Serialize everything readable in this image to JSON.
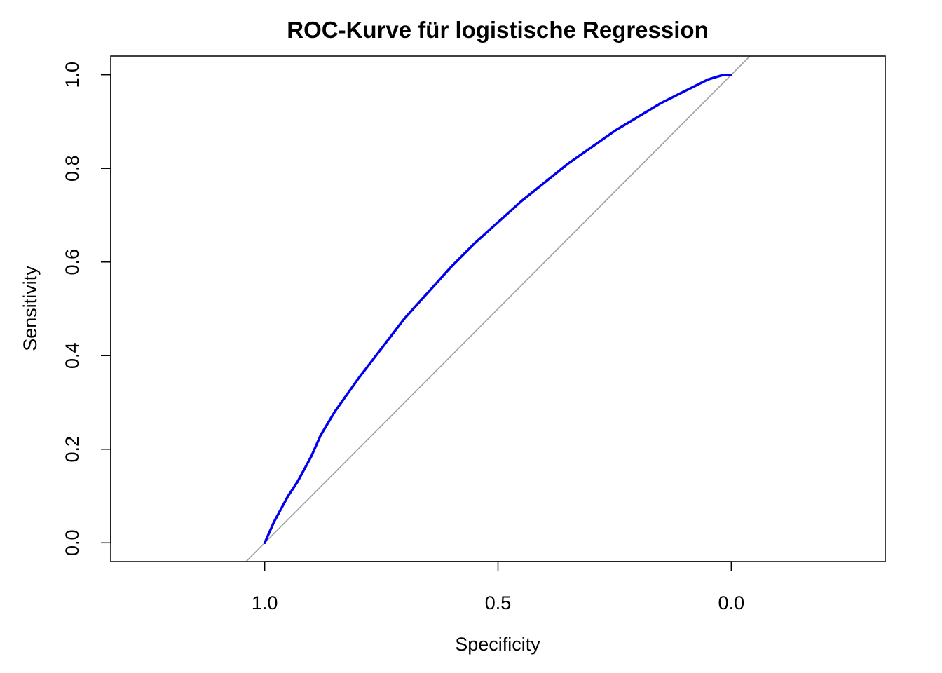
{
  "chart_data": {
    "type": "line",
    "title": "ROC-Kurve für logistische Regression",
    "xlabel": "Specificity",
    "ylabel": "Sensitivity",
    "xlim": [
      1.33,
      -0.33
    ],
    "ylim": [
      -0.04,
      1.04
    ],
    "x_reversed": true,
    "grid": false,
    "x_ticks": [
      1.0,
      0.5,
      0.0
    ],
    "x_tick_labels": [
      "1.0",
      "0.5",
      "0.0"
    ],
    "y_ticks": [
      0.0,
      0.2,
      0.4,
      0.6,
      0.8,
      1.0
    ],
    "y_tick_labels": [
      "0.0",
      "0.2",
      "0.4",
      "0.6",
      "0.8",
      "1.0"
    ],
    "reference_line": {
      "from": [
        1.0,
        0.0
      ],
      "to": [
        0.0,
        1.0
      ],
      "color": "#a0a0a0"
    },
    "series": [
      {
        "color": "#0000ee",
        "x": [
          1.0,
          0.98,
          0.95,
          0.93,
          0.9,
          0.88,
          0.85,
          0.8,
          0.75,
          0.7,
          0.65,
          0.6,
          0.55,
          0.5,
          0.45,
          0.4,
          0.35,
          0.3,
          0.25,
          0.2,
          0.15,
          0.1,
          0.05,
          0.02,
          0.0
        ],
        "y": [
          0.0,
          0.045,
          0.1,
          0.13,
          0.185,
          0.23,
          0.28,
          0.35,
          0.415,
          0.48,
          0.535,
          0.59,
          0.64,
          0.685,
          0.73,
          0.77,
          0.81,
          0.845,
          0.88,
          0.91,
          0.94,
          0.965,
          0.99,
          0.999,
          1.0
        ]
      }
    ]
  }
}
